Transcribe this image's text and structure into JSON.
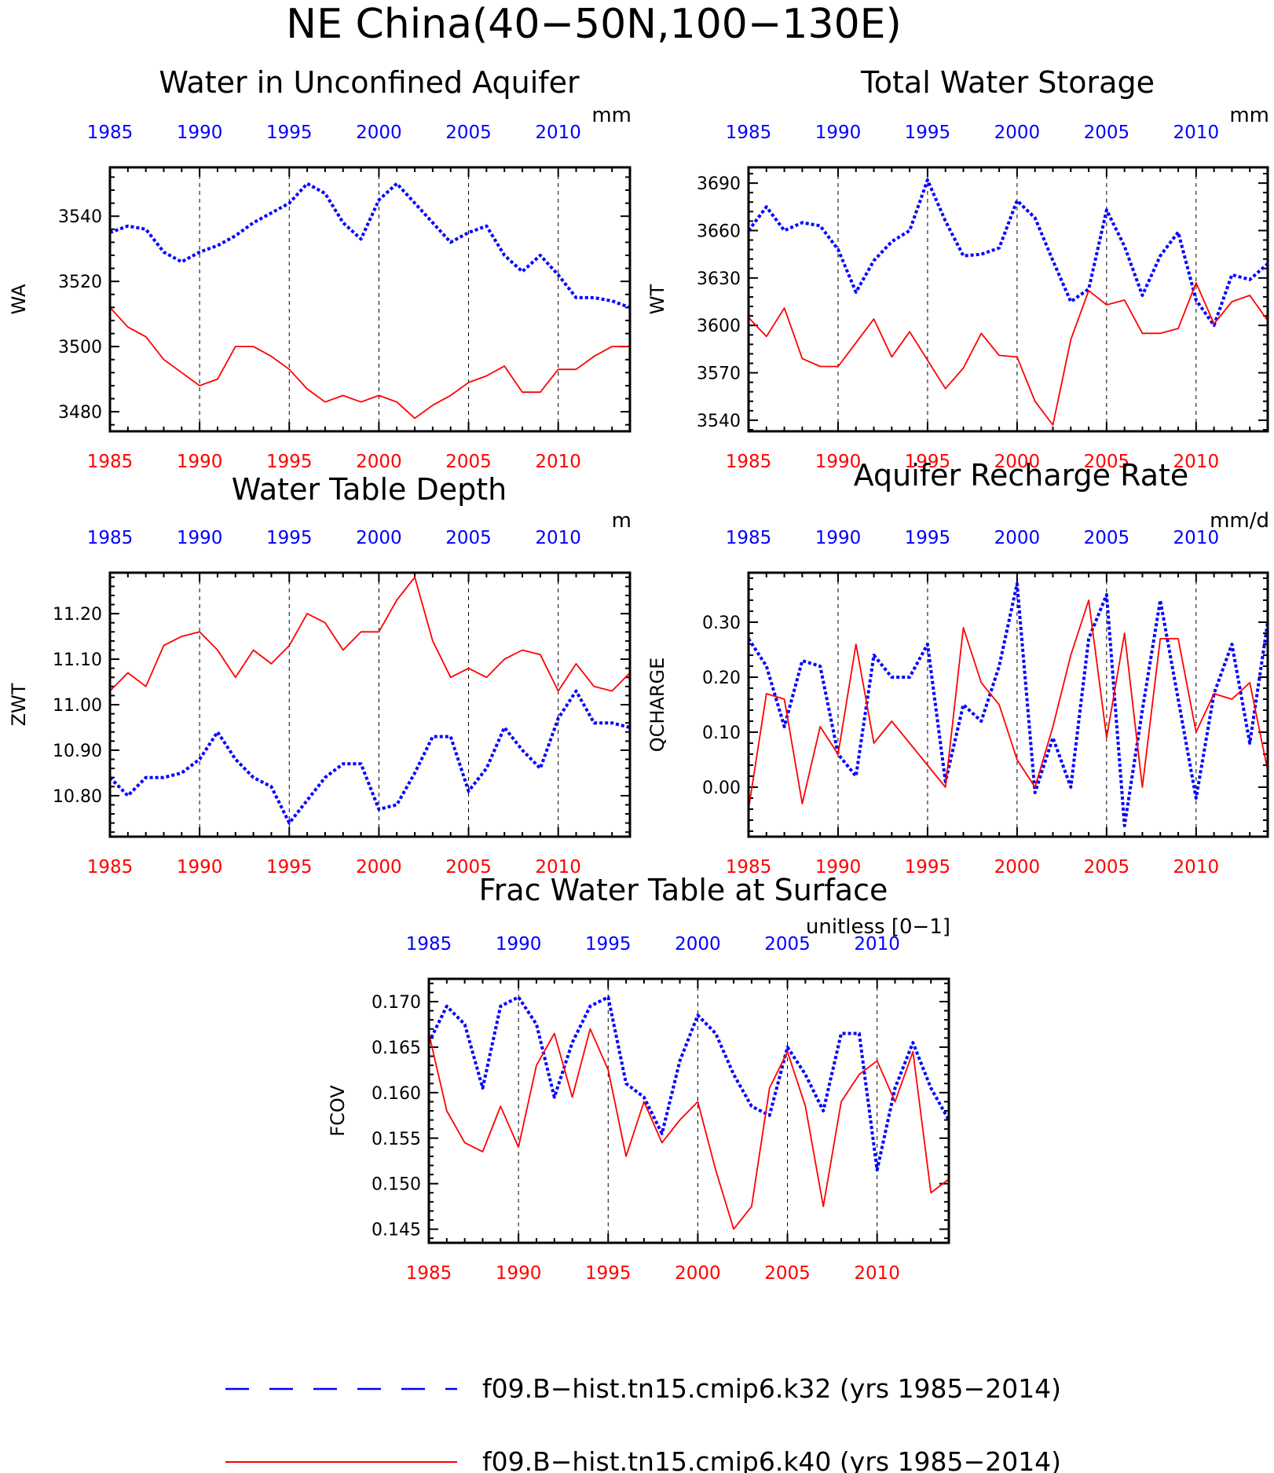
{
  "title": "NE China(40−50N,100−130E)",
  "colors": {
    "k32": "#0000ff",
    "k40": "#ff0000"
  },
  "legend": [
    {
      "label": "f09.B−hist.tn15.cmip6.k32 (yrs 1985−2014)",
      "color": "#0000ff",
      "style": "dashed"
    },
    {
      "label": "f09.B−hist.tn15.cmip6.k40 (yrs 1985−2014)",
      "color": "#ff0000",
      "style": "solid"
    }
  ],
  "chart_data": [
    {
      "type": "line",
      "title": "Water in Unconfined Aquifer",
      "units": "mm",
      "ylabel": "WA",
      "xlim": [
        1985,
        2014
      ],
      "ylim": [
        3474,
        3555
      ],
      "yticks": [
        3480,
        3500,
        3520,
        3540
      ],
      "ytick_labels": [
        "3480",
        "3500",
        "3520",
        "3540"
      ],
      "xticks": [
        1985,
        1990,
        1995,
        2000,
        2005,
        2010
      ],
      "grid": "dashed vertical at 5-year ticks",
      "x": [
        1985,
        1986,
        1987,
        1988,
        1989,
        1990,
        1991,
        1992,
        1993,
        1994,
        1995,
        1996,
        1997,
        1998,
        1999,
        2000,
        2001,
        2002,
        2003,
        2004,
        2005,
        2006,
        2007,
        2008,
        2009,
        2010,
        2011,
        2012,
        2013,
        2014
      ],
      "series": [
        {
          "name": "f09.B−hist.tn15.cmip6.k32",
          "color": "#0000ff",
          "style": "dashed",
          "values": [
            3535,
            3537,
            3536,
            3529,
            3526,
            3529,
            3531,
            3534,
            3538,
            3541,
            3544,
            3550,
            3547,
            3538,
            3533,
            3545,
            3550,
            3544,
            3538,
            3532,
            3535,
            3537,
            3528,
            3523,
            3528,
            3522,
            3515,
            3515,
            3514,
            3512
          ]
        },
        {
          "name": "f09.B−hist.tn15.cmip6.k40",
          "color": "#ff0000",
          "style": "solid",
          "values": [
            3512,
            3506,
            3503,
            3496,
            3492,
            3488,
            3490,
            3500,
            3500,
            3497,
            3493,
            3487,
            3483,
            3485,
            3483,
            3485,
            3483,
            3478,
            3482,
            3485,
            3489,
            3491,
            3494,
            3486,
            3486,
            3493,
            3493,
            3497,
            3500,
            3500
          ]
        }
      ]
    },
    {
      "type": "line",
      "title": "Total Water Storage",
      "units": "mm",
      "ylabel": "WT",
      "xlim": [
        1985,
        2014
      ],
      "ylim": [
        3533,
        3700
      ],
      "yticks": [
        3540,
        3570,
        3600,
        3630,
        3660,
        3690
      ],
      "ytick_labels": [
        "3540",
        "3570",
        "3600",
        "3630",
        "3660",
        "3690"
      ],
      "xticks": [
        1985,
        1990,
        1995,
        2000,
        2005,
        2010
      ],
      "grid": "dashed vertical at 5-year ticks",
      "x": [
        1985,
        1986,
        1987,
        1988,
        1989,
        1990,
        1991,
        1992,
        1993,
        1994,
        1995,
        1996,
        1997,
        1998,
        1999,
        2000,
        2001,
        2002,
        2003,
        2004,
        2005,
        2006,
        2007,
        2008,
        2009,
        2010,
        2011,
        2012,
        2013,
        2014
      ],
      "series": [
        {
          "name": "f09.B−hist.tn15.cmip6.k32",
          "color": "#0000ff",
          "style": "dashed",
          "values": [
            3660,
            3675,
            3660,
            3665,
            3663,
            3648,
            3621,
            3641,
            3653,
            3660,
            3692,
            3666,
            3644,
            3645,
            3649,
            3679,
            3668,
            3641,
            3615,
            3623,
            3673,
            3650,
            3619,
            3644,
            3659,
            3616,
            3600,
            3632,
            3629,
            3639
          ]
        },
        {
          "name": "f09.B−hist.tn15.cmip6.k40",
          "color": "#ff0000",
          "style": "solid",
          "values": [
            3605,
            3593,
            3611,
            3579,
            3574,
            3574,
            3589,
            3604,
            3580,
            3596,
            3578,
            3560,
            3573,
            3595,
            3581,
            3580,
            3552,
            3537,
            3591,
            3622,
            3613,
            3616,
            3595,
            3595,
            3598,
            3627,
            3601,
            3615,
            3619,
            3603
          ]
        }
      ]
    },
    {
      "type": "line",
      "title": "Water Table Depth",
      "units": "m",
      "ylabel": "ZWT",
      "xlim": [
        1985,
        2014
      ],
      "ylim": [
        10.71,
        11.29
      ],
      "yticks": [
        10.8,
        10.9,
        11.0,
        11.1,
        11.2
      ],
      "ytick_labels": [
        "10.80",
        "10.90",
        "11.00",
        "11.10",
        "11.20"
      ],
      "xticks": [
        1985,
        1990,
        1995,
        2000,
        2005,
        2010
      ],
      "grid": "dashed vertical at 5-year ticks",
      "x": [
        1985,
        1986,
        1987,
        1988,
        1989,
        1990,
        1991,
        1992,
        1993,
        1994,
        1995,
        1996,
        1997,
        1998,
        1999,
        2000,
        2001,
        2002,
        2003,
        2004,
        2005,
        2006,
        2007,
        2008,
        2009,
        2010,
        2011,
        2012,
        2013,
        2014
      ],
      "series": [
        {
          "name": "f09.B−hist.tn15.cmip6.k32",
          "color": "#0000ff",
          "style": "dashed",
          "values": [
            10.84,
            10.8,
            10.84,
            10.84,
            10.85,
            10.88,
            10.94,
            10.88,
            10.84,
            10.82,
            10.74,
            10.79,
            10.84,
            10.87,
            10.87,
            10.77,
            10.78,
            10.85,
            10.93,
            10.93,
            10.81,
            10.86,
            10.95,
            10.9,
            10.86,
            10.97,
            11.03,
            10.96,
            10.96,
            10.95
          ]
        },
        {
          "name": "f09.B−hist.tn15.cmip6.k40",
          "color": "#ff0000",
          "style": "solid",
          "values": [
            11.03,
            11.07,
            11.04,
            11.13,
            11.15,
            11.16,
            11.12,
            11.06,
            11.12,
            11.09,
            11.13,
            11.2,
            11.18,
            11.12,
            11.16,
            11.16,
            11.23,
            11.28,
            11.14,
            11.06,
            11.08,
            11.06,
            11.1,
            11.12,
            11.11,
            11.03,
            11.09,
            11.04,
            11.03,
            11.07
          ]
        }
      ]
    },
    {
      "type": "line",
      "title": "Aquifer Recharge Rate",
      "units": "mm/d",
      "ylabel": "QCHARGE",
      "xlim": [
        1985,
        2014
      ],
      "ylim": [
        -0.09,
        0.39
      ],
      "yticks": [
        0.0,
        0.1,
        0.2,
        0.3
      ],
      "ytick_labels": [
        "0.00",
        "0.10",
        "0.20",
        "0.30"
      ],
      "xticks": [
        1985,
        1990,
        1995,
        2000,
        2005,
        2010
      ],
      "grid": "dashed vertical at 5-year ticks",
      "x": [
        1985,
        1986,
        1987,
        1988,
        1989,
        1990,
        1991,
        1992,
        1993,
        1994,
        1995,
        1996,
        1997,
        1998,
        1999,
        2000,
        2001,
        2002,
        2003,
        2004,
        2005,
        2006,
        2007,
        2008,
        2009,
        2010,
        2011,
        2012,
        2013,
        2014
      ],
      "series": [
        {
          "name": "f09.B−hist.tn15.cmip6.k32",
          "color": "#0000ff",
          "style": "dashed",
          "values": [
            0.27,
            0.22,
            0.11,
            0.23,
            0.22,
            0.06,
            0.02,
            0.24,
            0.2,
            0.2,
            0.26,
            0.01,
            0.15,
            0.12,
            0.22,
            0.37,
            -0.01,
            0.09,
            0.0,
            0.27,
            0.35,
            -0.07,
            0.14,
            0.34,
            0.16,
            -0.02,
            0.17,
            0.26,
            0.08,
            0.3
          ]
        },
        {
          "name": "f09.B−hist.tn15.cmip6.k40",
          "color": "#ff0000",
          "style": "solid",
          "values": [
            -0.04,
            0.17,
            0.16,
            -0.03,
            0.11,
            0.06,
            0.26,
            0.08,
            0.12,
            0.08,
            0.04,
            0.0,
            0.29,
            0.19,
            0.15,
            0.05,
            0.0,
            0.11,
            0.24,
            0.34,
            0.09,
            0.28,
            0.0,
            0.27,
            0.27,
            0.1,
            0.17,
            0.16,
            0.19,
            0.03
          ]
        }
      ]
    },
    {
      "type": "line",
      "title": "Frac Water Table at Surface",
      "units": "unitless [0−1]",
      "ylabel": "FCOV",
      "xlim": [
        1985,
        2014
      ],
      "ylim": [
        0.1435,
        0.1725
      ],
      "yticks": [
        0.145,
        0.15,
        0.155,
        0.16,
        0.165,
        0.17
      ],
      "ytick_labels": [
        "0.145",
        "0.150",
        "0.155",
        "0.160",
        "0.165",
        "0.170"
      ],
      "xticks": [
        1985,
        1990,
        1995,
        2000,
        2005,
        2010
      ],
      "grid": "dashed vertical at 5-year ticks",
      "x": [
        1985,
        1986,
        1987,
        1988,
        1989,
        1990,
        1991,
        1992,
        1993,
        1994,
        1995,
        1996,
        1997,
        1998,
        1999,
        2000,
        2001,
        2002,
        2003,
        2004,
        2005,
        2006,
        2007,
        2008,
        2009,
        2010,
        2011,
        2012,
        2013,
        2014
      ],
      "series": [
        {
          "name": "f09.B−hist.tn15.cmip6.k32",
          "color": "#0000ff",
          "style": "dashed",
          "values": [
            0.1655,
            0.1695,
            0.1675,
            0.1605,
            0.1695,
            0.1705,
            0.1675,
            0.1595,
            0.1655,
            0.1695,
            0.1705,
            0.161,
            0.1595,
            0.1555,
            0.1635,
            0.1685,
            0.1665,
            0.162,
            0.1585,
            0.1575,
            0.165,
            0.162,
            0.158,
            0.1665,
            0.1665,
            0.1515,
            0.1605,
            0.1655,
            0.1605,
            0.157
          ]
        },
        {
          "name": "f09.B−hist.tn15.cmip6.k40",
          "color": "#ff0000",
          "style": "solid",
          "values": [
            0.1665,
            0.158,
            0.1545,
            0.1535,
            0.1585,
            0.154,
            0.163,
            0.1665,
            0.1595,
            0.167,
            0.1625,
            0.153,
            0.159,
            0.1545,
            0.157,
            0.159,
            0.1515,
            0.145,
            0.1475,
            0.1605,
            0.1645,
            0.1585,
            0.1475,
            0.159,
            0.162,
            0.1635,
            0.159,
            0.1645,
            0.149,
            0.1505
          ]
        }
      ]
    }
  ]
}
